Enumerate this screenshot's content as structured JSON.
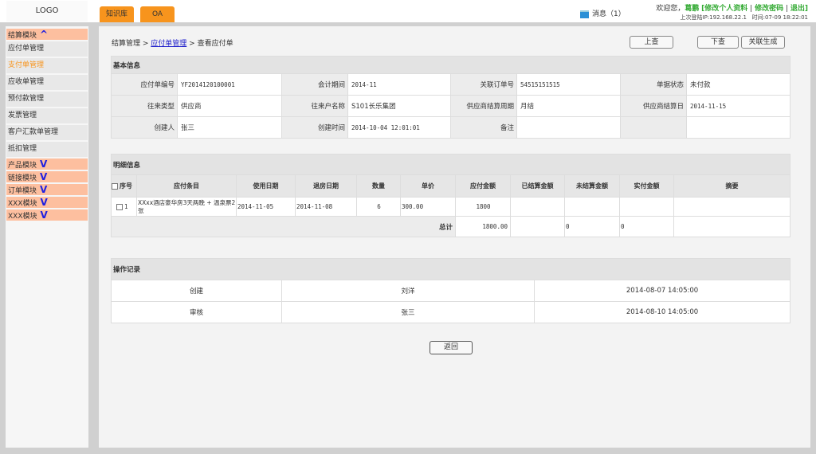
{
  "header": {
    "logo": "LOGO",
    "tabs": [
      "知识库",
      "OA"
    ],
    "messages": "消息（1）",
    "welcome": "欢迎您，",
    "user": "葛鹏",
    "edit_profile": "修改个人资料",
    "change_password": "修改密码",
    "logout": "退出",
    "last_login": "上次登陆IP:192.168.22.1",
    "time": "时间:07-09 18:22:01"
  },
  "sidebar": {
    "module_settle": "结算模块",
    "items": [
      "应付单管理",
      "支付单管理",
      "应收单管理",
      "预付款管理",
      "发票管理",
      "客户汇款单管理",
      "抵扣管理"
    ],
    "modules": [
      "产品模块",
      "链接模块",
      "订单模块",
      "XXX模块",
      "XXX模块"
    ],
    "collapse_arrow": "^",
    "expand_arrow": "V"
  },
  "breadcrumb": {
    "root": "结算管理",
    "link": "应付单管理",
    "current": "查看应付单"
  },
  "toolbar": {
    "prev": "上查",
    "next": "下查",
    "link_generate": "关联生成"
  },
  "basic": {
    "title": "基本信息",
    "rows": [
      [
        {
          "l": "应付单编号",
          "v": "YF2014120100001"
        },
        {
          "l": "会计期间",
          "v": "2014-11"
        },
        {
          "l": "关联订单号",
          "v": "54515151515"
        },
        {
          "l": "单据状态",
          "v": "未付款"
        }
      ],
      [
        {
          "l": "往来类型",
          "v": "供应商"
        },
        {
          "l": "往来户名称",
          "v": "S101长乐集团"
        },
        {
          "l": "供应商结算周期",
          "v": "月结"
        },
        {
          "l": "供应商结算日",
          "v": "2014-11-15"
        }
      ],
      [
        {
          "l": "创建人",
          "v": "张三"
        },
        {
          "l": "创建时间",
          "v": "2014-10-04 12:01:01"
        },
        {
          "l": "备注",
          "v": ""
        },
        {
          "l": "",
          "v": ""
        }
      ]
    ]
  },
  "detail": {
    "title": "明细信息",
    "columns": [
      "序号",
      "应付条目",
      "使用日期",
      "退房日期",
      "数量",
      "单价",
      "应付金额",
      "已结算金额",
      "未结算金额",
      "实付金额",
      "摘要"
    ],
    "rows": [
      [
        "1",
        "XXxx酒店豪华房3天两晚 + 温泉票2张",
        "2014-11-05",
        "2014-11-08",
        "6",
        "300.00",
        "1800",
        "",
        "",
        "",
        ""
      ]
    ],
    "total_label": "总计",
    "total": [
      "1800.00",
      "",
      "0",
      "0",
      ""
    ]
  },
  "log": {
    "title": "操作记录",
    "rows": [
      [
        "创建",
        "刘洋",
        "2014-08-07 14:05:00"
      ],
      [
        "审核",
        "张三",
        "2014-08-10 14:05:00"
      ]
    ]
  },
  "footer": {
    "back": "返回"
  }
}
